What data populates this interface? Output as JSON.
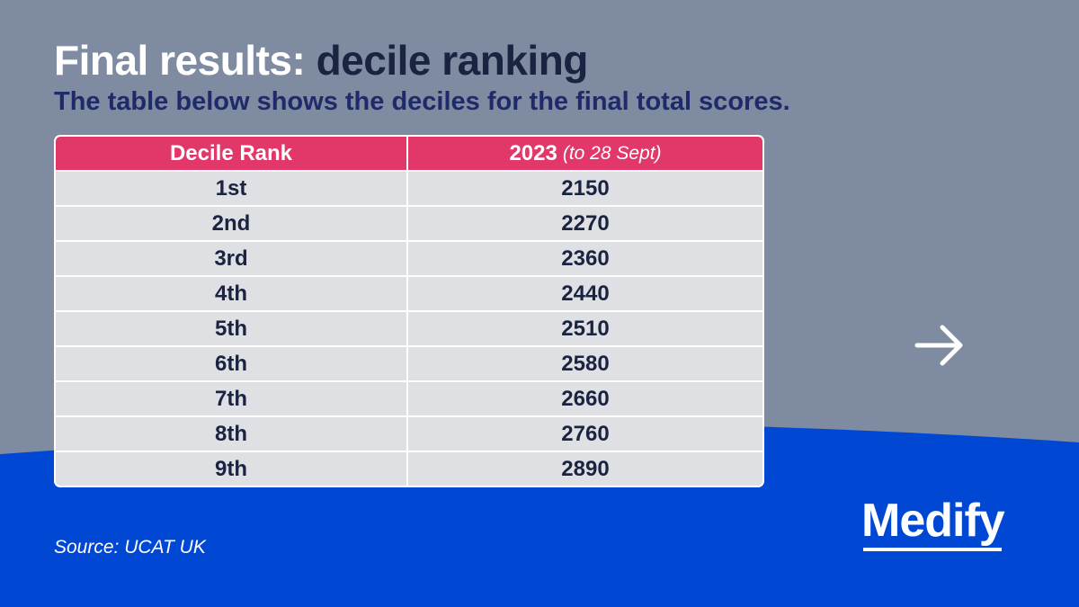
{
  "title": {
    "part1": "Final results:",
    "part2": "decile ranking"
  },
  "subtitle": "The table below shows the deciles for the final total scores.",
  "table": {
    "headers": {
      "rank": "Decile Rank",
      "year": "2023",
      "note": "(to 28 Sept)"
    },
    "rows": [
      {
        "rank": "1st",
        "score": "2150"
      },
      {
        "rank": "2nd",
        "score": "2270"
      },
      {
        "rank": "3rd",
        "score": "2360"
      },
      {
        "rank": "4th",
        "score": "2440"
      },
      {
        "rank": "5th",
        "score": "2510"
      },
      {
        "rank": "6th",
        "score": "2580"
      },
      {
        "rank": "7th",
        "score": "2660"
      },
      {
        "rank": "8th",
        "score": "2760"
      },
      {
        "rank": "9th",
        "score": "2890"
      }
    ]
  },
  "source": "Source: UCAT UK",
  "logo": "Medify",
  "icons": {
    "next": "arrow-right-icon"
  },
  "colors": {
    "background": "#7f8ba1",
    "wave": "#0047d4",
    "header": "#e23769",
    "cell": "#dfe0e3",
    "text_dark": "#1a2340",
    "subtitle": "#1f2a6b"
  }
}
